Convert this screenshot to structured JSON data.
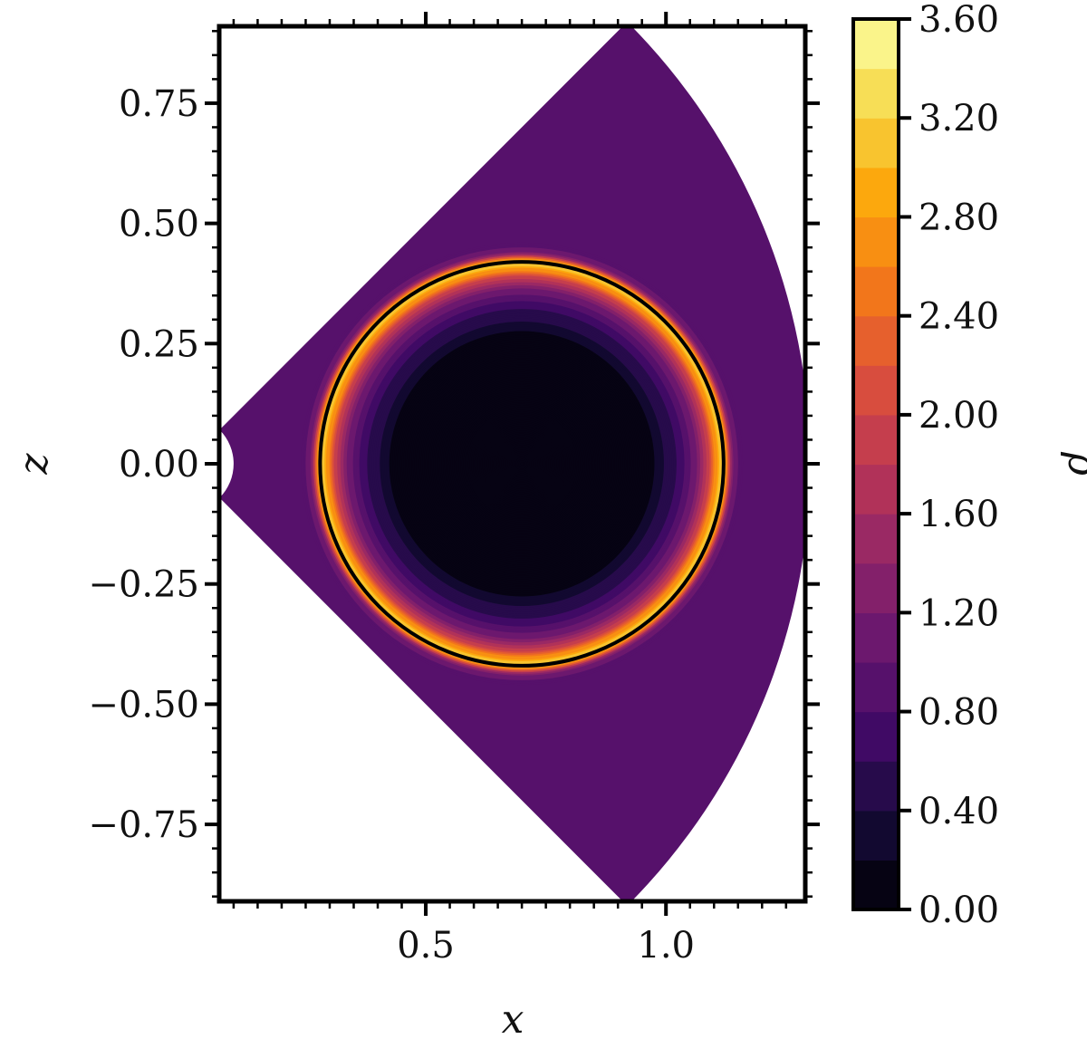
{
  "chart_data": {
    "type": "heatmap",
    "title": "",
    "xlabel": "x",
    "ylabel": "z",
    "xlim": [
      0.07,
      1.29
    ],
    "ylim": [
      -0.91,
      0.91
    ],
    "x_ticks": [
      {
        "value": 0.5,
        "label": "0.5"
      },
      {
        "value": 1.0,
        "label": "1.0"
      }
    ],
    "y_ticks": [
      {
        "value": 0.75,
        "label": "0.75"
      },
      {
        "value": 0.5,
        "label": "0.50"
      },
      {
        "value": 0.25,
        "label": "0.25"
      },
      {
        "value": 0.0,
        "label": "0.00"
      },
      {
        "value": -0.25,
        "label": "−0.25"
      },
      {
        "value": -0.5,
        "label": "−0.50"
      },
      {
        "value": -0.75,
        "label": "−0.75"
      }
    ],
    "domain": {
      "shape": "annular-sector",
      "inner_radius": 0.1,
      "outer_radius": 1.3,
      "half_angle_deg": 45
    },
    "background_density": 0.9,
    "circle": {
      "center": [
        0.7,
        0.0
      ],
      "radius": 0.42
    },
    "radial_profile": [
      {
        "r": 0.0,
        "rho": 0.05
      },
      {
        "r": 0.27,
        "rho": 0.05
      },
      {
        "r": 0.28,
        "rho": 0.3
      },
      {
        "r": 0.32,
        "rho": 0.55
      },
      {
        "r": 0.36,
        "rho": 1.1
      },
      {
        "r": 0.39,
        "rho": 2.0
      },
      {
        "r": 0.41,
        "rho": 3.0
      },
      {
        "r": 0.42,
        "rho": 3.2
      },
      {
        "r": 0.44,
        "rho": 1.1
      },
      {
        "r": 0.46,
        "rho": 0.9
      }
    ],
    "colorbar": {
      "label": "ρ",
      "min": 0.0,
      "max": 3.6,
      "levels": 18,
      "colormap": "inferno",
      "ticks": [
        {
          "value": 0.0,
          "label": "0.00"
        },
        {
          "value": 0.4,
          "label": "0.40"
        },
        {
          "value": 0.8,
          "label": "0.80"
        },
        {
          "value": 1.2,
          "label": "1.20"
        },
        {
          "value": 1.6,
          "label": "1.60"
        },
        {
          "value": 2.0,
          "label": "2.00"
        },
        {
          "value": 2.4,
          "label": "2.40"
        },
        {
          "value": 2.8,
          "label": "2.80"
        },
        {
          "value": 3.2,
          "label": "3.20"
        },
        {
          "value": 3.6,
          "label": "3.60"
        }
      ]
    }
  }
}
